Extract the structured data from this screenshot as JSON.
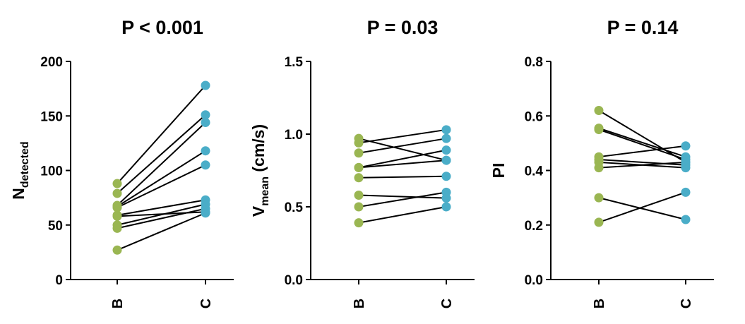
{
  "colors": {
    "B": "#9ab652",
    "C": "#4aadc8",
    "line": "#000000",
    "axis": "#000000"
  },
  "chart_data": [
    {
      "type": "scatter",
      "title": "P < 0.001",
      "ylabel_main": "N",
      "ylabel_sub": "detected",
      "ylabel_rest": "",
      "categories": [
        "B",
        "C"
      ],
      "ylim": [
        0,
        200
      ],
      "yticks": [
        0,
        50,
        100,
        150,
        200
      ],
      "ytick_labels": [
        "0",
        "50",
        "100",
        "150",
        "200"
      ],
      "pairs": [
        [
          88,
          178
        ],
        [
          79,
          151
        ],
        [
          68,
          144
        ],
        [
          67,
          118
        ],
        [
          66,
          105
        ],
        [
          59,
          73
        ],
        [
          50,
          69
        ],
        [
          47,
          65
        ],
        [
          58,
          62
        ],
        [
          27,
          61
        ]
      ]
    },
    {
      "type": "scatter",
      "title": "P = 0.03",
      "ylabel_main": "V",
      "ylabel_sub": "mean",
      "ylabel_rest": " (cm/s)",
      "categories": [
        "B",
        "C"
      ],
      "ylim": [
        0,
        1.5
      ],
      "yticks": [
        0,
        0.5,
        1.0,
        1.5
      ],
      "ytick_labels": [
        "0.0",
        "0.5",
        "1.0",
        "1.5"
      ],
      "pairs": [
        [
          0.97,
          0.82
        ],
        [
          0.94,
          1.03
        ],
        [
          0.87,
          0.97
        ],
        [
          0.77,
          0.89
        ],
        [
          0.77,
          0.82
        ],
        [
          0.7,
          0.71
        ],
        [
          0.58,
          0.56
        ],
        [
          0.5,
          0.6
        ],
        [
          0.39,
          0.5
        ]
      ]
    },
    {
      "type": "scatter",
      "title": "P = 0.14",
      "ylabel_main": "PI",
      "ylabel_sub": "",
      "ylabel_rest": "",
      "categories": [
        "B",
        "C"
      ],
      "ylim": [
        0,
        0.8
      ],
      "yticks": [
        0,
        0.2,
        0.4,
        0.6,
        0.8
      ],
      "ytick_labels": [
        "0.0",
        "0.2",
        "0.4",
        "0.6",
        "0.8"
      ],
      "pairs": [
        [
          0.62,
          0.43
        ],
        [
          0.555,
          0.45
        ],
        [
          0.55,
          0.44
        ],
        [
          0.45,
          0.49
        ],
        [
          0.44,
          0.42
        ],
        [
          0.43,
          0.41
        ],
        [
          0.41,
          0.43
        ],
        [
          0.3,
          0.22
        ],
        [
          0.21,
          0.32
        ]
      ]
    }
  ]
}
